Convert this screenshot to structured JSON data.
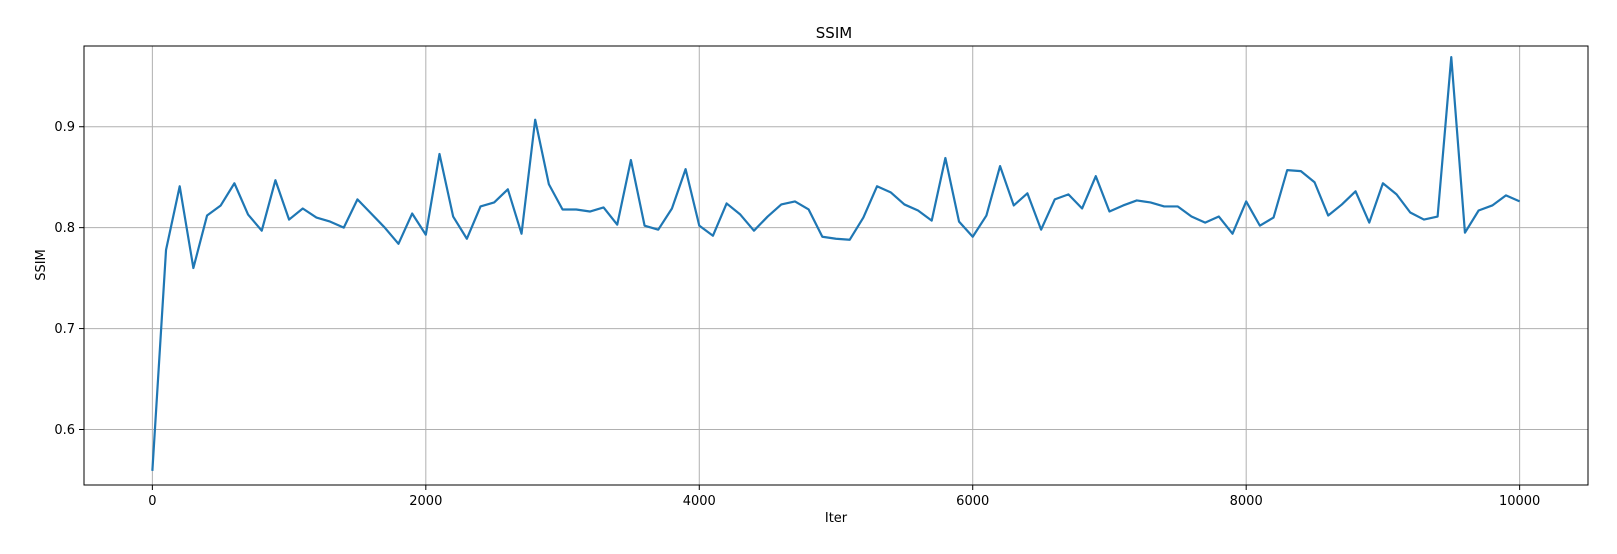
{
  "chart_data": {
    "type": "line",
    "title": "SSIM",
    "xlabel": "Iter",
    "ylabel": "SSIM",
    "xlim": [
      -500,
      10500
    ],
    "ylim": [
      0.545,
      0.98
    ],
    "xticks": [
      0,
      2000,
      4000,
      6000,
      8000,
      10000
    ],
    "yticks": [
      0.6,
      0.7,
      0.8,
      0.9
    ],
    "ytick_labels": [
      "0.6",
      "0.7",
      "0.8",
      "0.9"
    ],
    "grid": true,
    "line_color": "#1f77b4",
    "series": [
      {
        "x": [
          0,
          100,
          200,
          300,
          400,
          500,
          600,
          700,
          800,
          900,
          1000,
          1100,
          1200,
          1300,
          1400,
          1500,
          1600,
          1700,
          1800,
          1900,
          2000,
          2100,
          2200,
          2300,
          2400,
          2500,
          2600,
          2700,
          2800,
          2900,
          3000,
          3100,
          3200,
          3300,
          3400,
          3500,
          3600,
          3700,
          3800,
          3900,
          4000,
          4100,
          4200,
          4300,
          4400,
          4500,
          4600,
          4700,
          4800,
          4900,
          5000,
          5100,
          5200,
          5300,
          5400,
          5500,
          5600,
          5700,
          5800,
          5900,
          6000,
          6100,
          6200,
          6300,
          6400,
          6500,
          6600,
          6700,
          6800,
          6900,
          7000,
          7100,
          7200,
          7300,
          7400,
          7500,
          7600,
          7700,
          7800,
          7900,
          8000,
          8100,
          8200,
          8300,
          8400,
          8500,
          8600,
          8700,
          8800,
          8900,
          9000,
          9100,
          9200,
          9300,
          9400,
          9500,
          9600,
          9700,
          9800,
          9900,
          10000
        ],
        "values": [
          0.559,
          0.778,
          0.841,
          0.76,
          0.812,
          0.822,
          0.844,
          0.813,
          0.797,
          0.847,
          0.808,
          0.819,
          0.81,
          0.806,
          0.8,
          0.828,
          0.814,
          0.8,
          0.784,
          0.814,
          0.793,
          0.873,
          0.811,
          0.789,
          0.821,
          0.825,
          0.838,
          0.794,
          0.907,
          0.843,
          0.818,
          0.818,
          0.816,
          0.82,
          0.803,
          0.867,
          0.802,
          0.798,
          0.819,
          0.858,
          0.802,
          0.792,
          0.824,
          0.813,
          0.797,
          0.811,
          0.823,
          0.826,
          0.818,
          0.791,
          0.789,
          0.788,
          0.81,
          0.841,
          0.835,
          0.823,
          0.817,
          0.807,
          0.869,
          0.806,
          0.791,
          0.812,
          0.861,
          0.822,
          0.834,
          0.798,
          0.828,
          0.833,
          0.819,
          0.851,
          0.816,
          0.822,
          0.827,
          0.825,
          0.821,
          0.821,
          0.811,
          0.805,
          0.811,
          0.794,
          0.826,
          0.802,
          0.81,
          0.857,
          0.856,
          0.845,
          0.812,
          0.823,
          0.836,
          0.805,
          0.844,
          0.833,
          0.815,
          0.808,
          0.811,
          0.969,
          0.795,
          0.817,
          0.822,
          0.832,
          0.826
        ]
      }
    ],
    "xtick_labels": [
      "0",
      "2000",
      "4000",
      "6000",
      "8000",
      "10000"
    ]
  }
}
